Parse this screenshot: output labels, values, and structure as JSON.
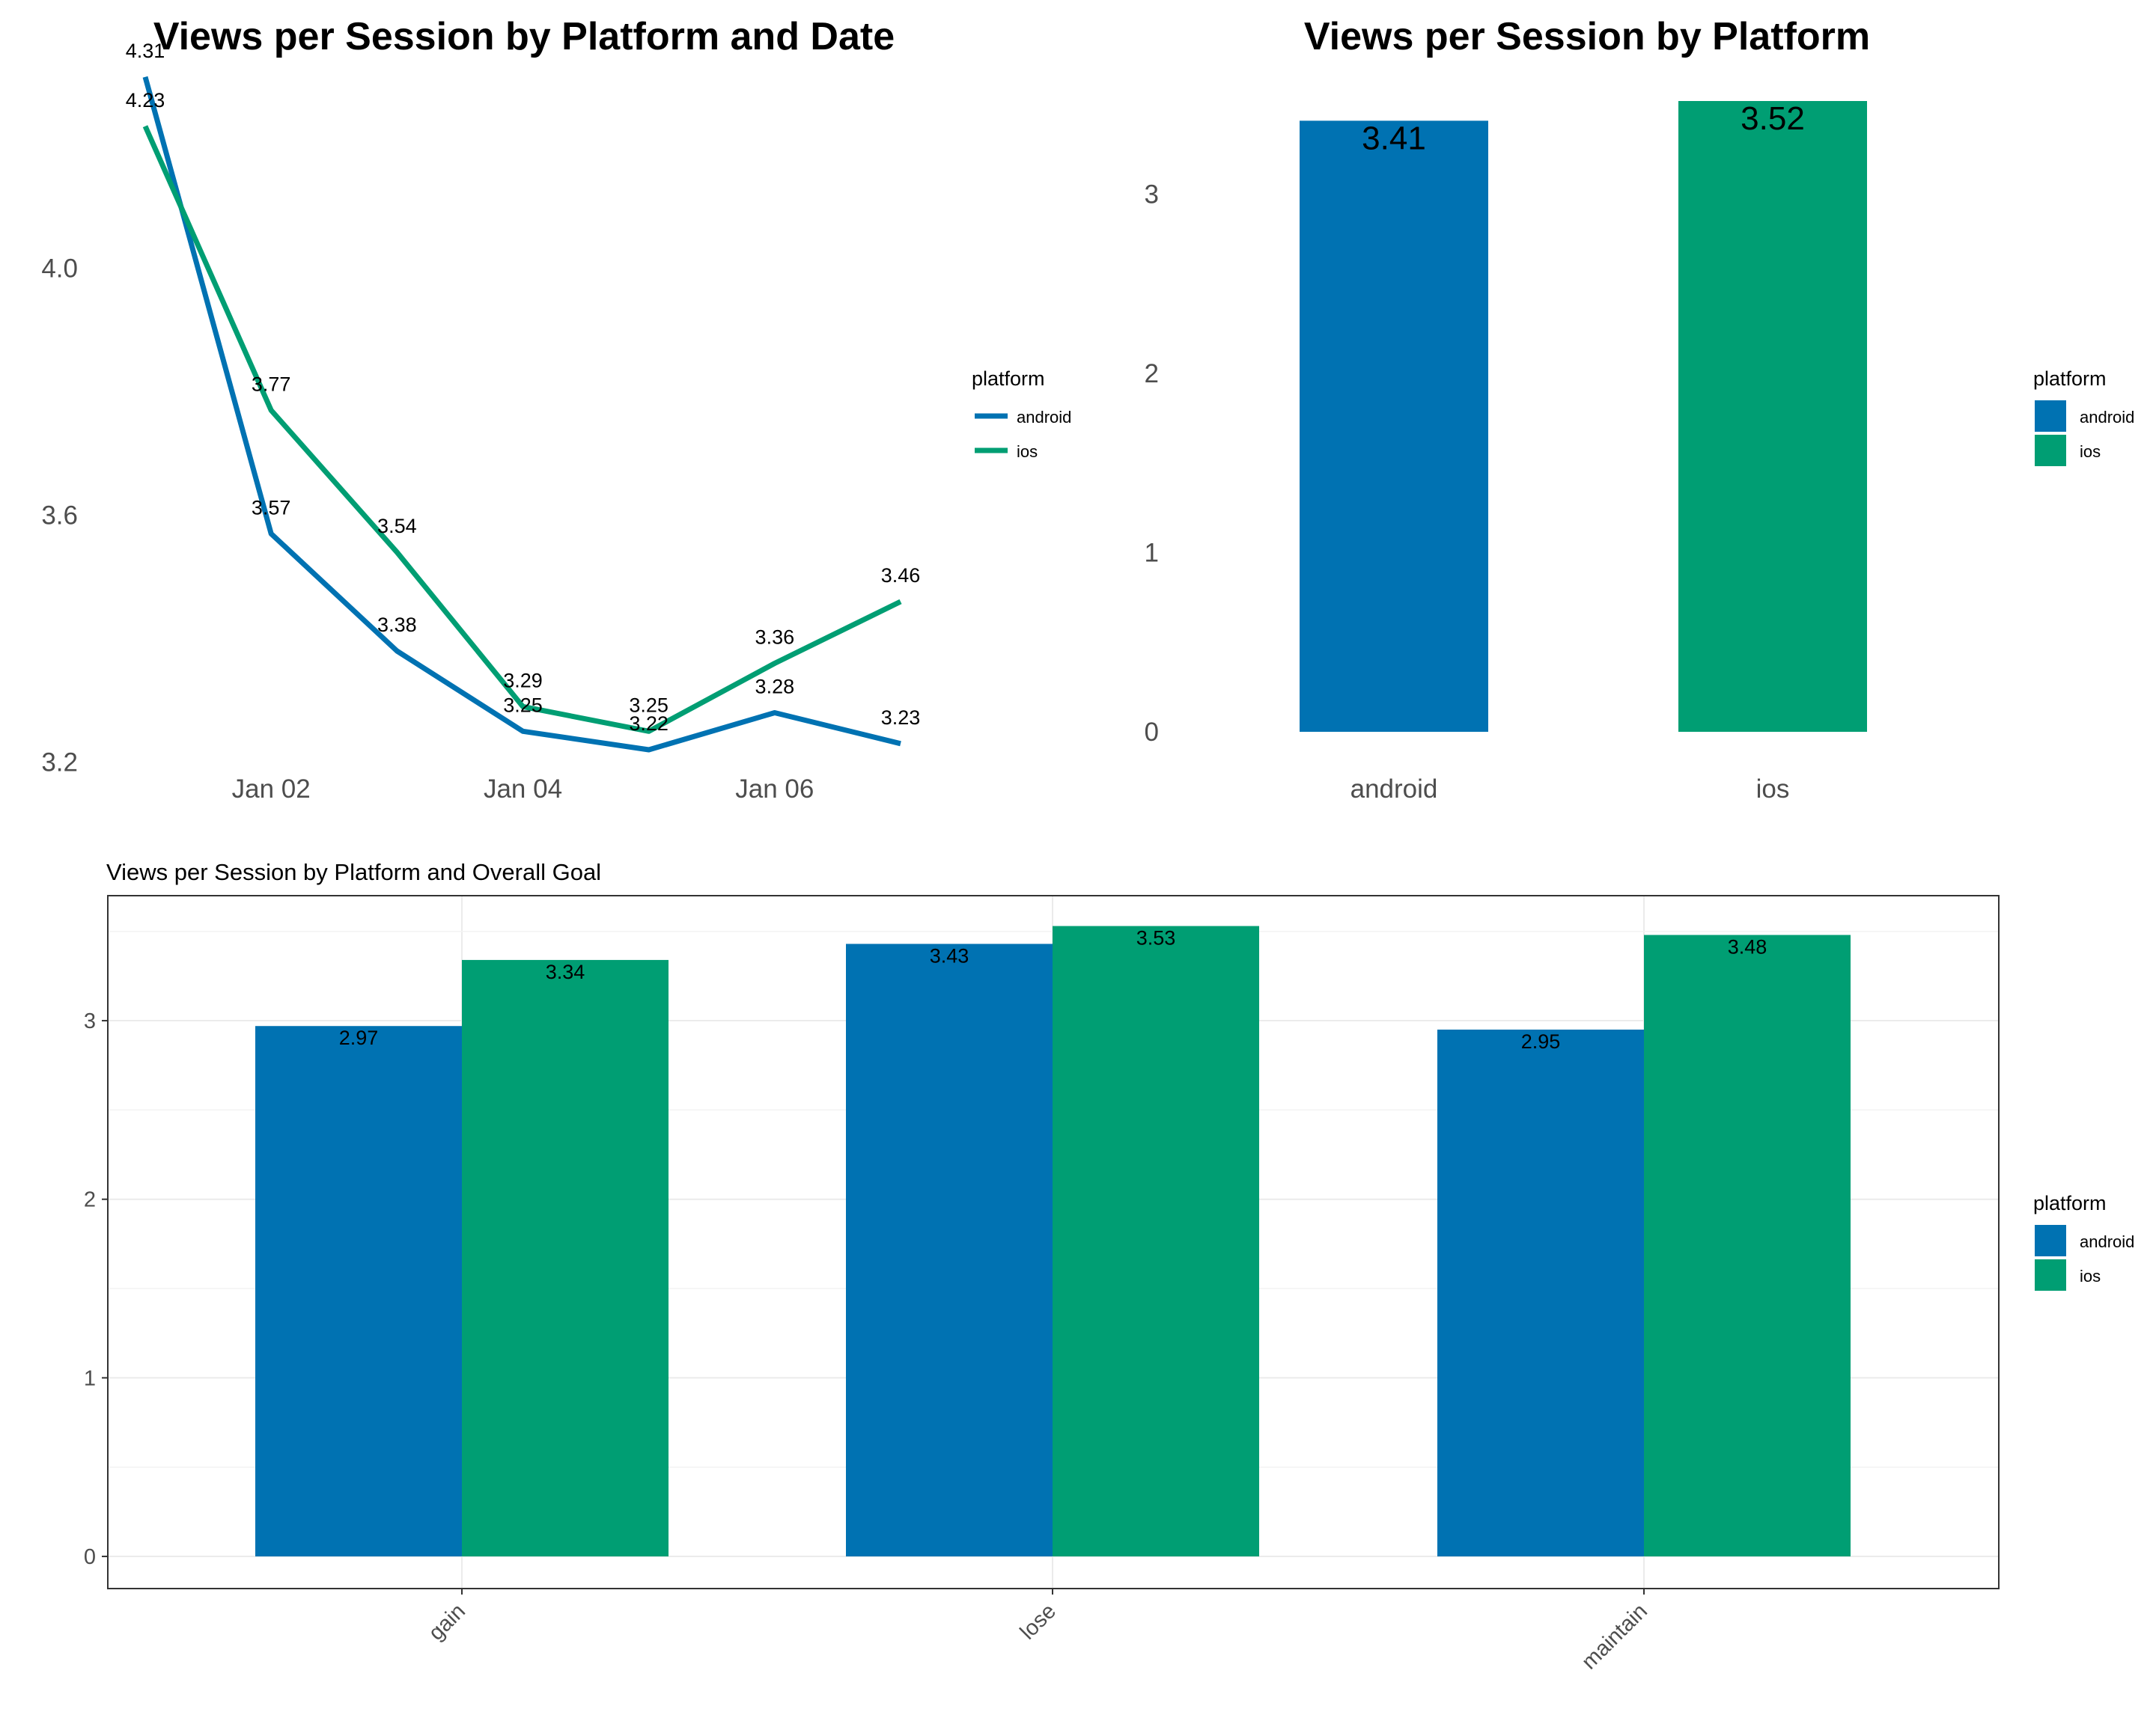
{
  "colors": {
    "android": "#0072B2",
    "ios": "#009E73"
  },
  "chart_data": [
    {
      "type": "line",
      "title": "Views per Session by Platform and Date",
      "xlabel": "",
      "ylabel": "",
      "x": [
        "Jan 01",
        "Jan 02",
        "Jan 03",
        "Jan 04",
        "Jan 05",
        "Jan 06",
        "Jan 07"
      ],
      "x_ticks": [
        "Jan 02",
        "Jan 04",
        "Jan 06"
      ],
      "y_ticks": [
        "3.2",
        "3.6",
        "4.0"
      ],
      "ylim": [
        3.18,
        4.34
      ],
      "grid": false,
      "legend": {
        "title": "platform",
        "position": "right",
        "entries": [
          "android",
          "ios"
        ]
      },
      "series": [
        {
          "name": "android",
          "values": [
            4.31,
            3.57,
            3.38,
            3.25,
            3.22,
            3.28,
            3.23
          ],
          "labels": [
            "4.31",
            "3.57",
            "3.38",
            "3.25",
            "3.22",
            "3.28",
            "3.23"
          ]
        },
        {
          "name": "ios",
          "values": [
            4.23,
            3.77,
            3.54,
            3.29,
            3.25,
            3.36,
            3.46
          ],
          "labels": [
            "4.23",
            "3.77",
            "3.54",
            "3.29",
            "3.25",
            "3.36",
            "3.46"
          ]
        }
      ]
    },
    {
      "type": "bar",
      "title": "Views per Session by Platform",
      "xlabel": "",
      "ylabel": "",
      "categories": [
        "android",
        "ios"
      ],
      "values": [
        3.41,
        3.52
      ],
      "labels": [
        "3.41",
        "3.52"
      ],
      "y_ticks": [
        "0",
        "1",
        "2",
        "3"
      ],
      "ylim": [
        0,
        3.52
      ],
      "grid": false,
      "legend": {
        "title": "platform",
        "position": "right",
        "entries": [
          "android",
          "ios"
        ]
      }
    },
    {
      "type": "bar",
      "title": "Views per Session by Platform and Overall Goal",
      "xlabel": "",
      "ylabel": "",
      "categories": [
        "gain",
        "lose",
        "maintain"
      ],
      "series": [
        {
          "name": "android",
          "values": [
            2.97,
            3.43,
            2.95
          ],
          "labels": [
            "2.97",
            "3.43",
            "2.95"
          ]
        },
        {
          "name": "ios",
          "values": [
            3.34,
            3.53,
            3.48
          ],
          "labels": [
            "3.34",
            "3.53",
            "3.48"
          ]
        }
      ],
      "y_ticks": [
        "0",
        "1",
        "2",
        "3"
      ],
      "ylim": [
        -0.18,
        3.7
      ],
      "grid": true,
      "legend": {
        "title": "platform",
        "position": "right",
        "entries": [
          "android",
          "ios"
        ]
      }
    }
  ]
}
